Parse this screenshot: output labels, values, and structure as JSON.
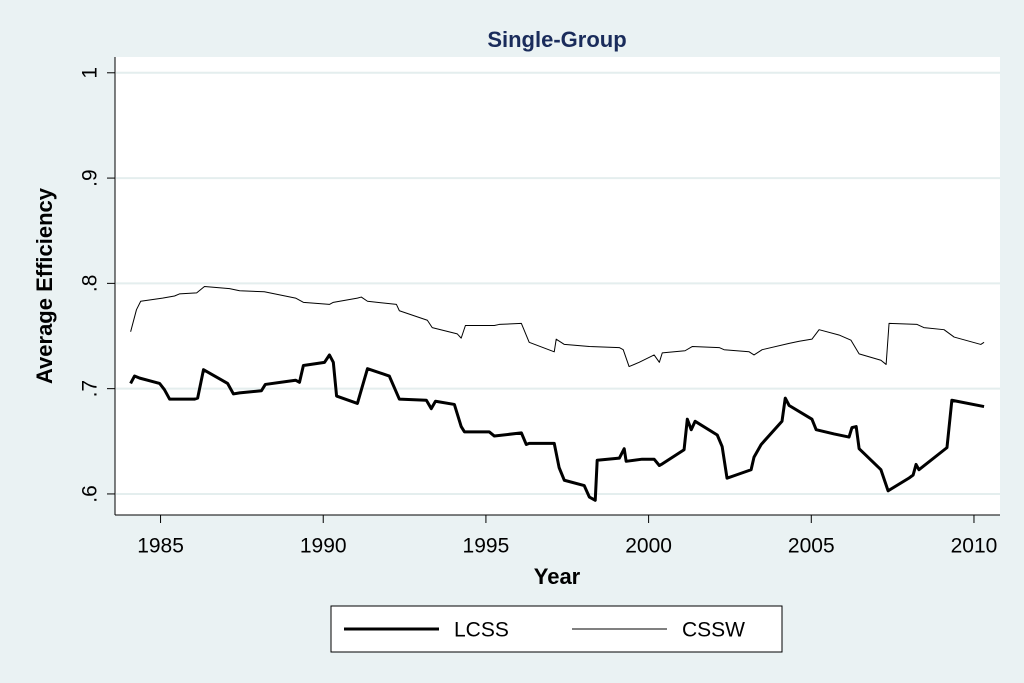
{
  "chart_data": {
    "type": "line",
    "title": "Single-Group",
    "x_label": "Year",
    "y_label": "Average Efficiency",
    "xlim": [
      1983.6,
      2010.8
    ],
    "ylim": [
      0.58,
      1.015
    ],
    "xticks": [
      1985,
      1990,
      1995,
      2000,
      2005,
      2010
    ],
    "yticks": [
      {
        "value": 0.6,
        "label": ".6"
      },
      {
        "value": 0.7,
        "label": ".7"
      },
      {
        "value": 0.8,
        "label": ".8"
      },
      {
        "value": 0.9,
        "label": ".9"
      },
      {
        "value": 1,
        "label": "1"
      }
    ],
    "grid": true,
    "legend": "bottom",
    "series": [
      {
        "name": "LCSS",
        "color": "#000000",
        "line_width": 3,
        "x": [
          1984.08,
          1984.2,
          1984.36,
          1984.97,
          1985.12,
          1985.28,
          1986.04,
          1986.14,
          1986.32,
          1987.06,
          1987.24,
          1987.43,
          1988.1,
          1988.22,
          1989.15,
          1989.27,
          1989.39,
          1990.04,
          1990.19,
          1990.31,
          1990.41,
          1991.05,
          1991.36,
          1992.03,
          1992.34,
          1993.17,
          1993.32,
          1993.45,
          1994.03,
          1994.24,
          1994.34,
          1995.1,
          1995.26,
          1996.09,
          1996.24,
          1996.33,
          1997.1,
          1997.25,
          1997.41,
          1998.02,
          1998.18,
          1998.36,
          1998.42,
          1999.1,
          1999.25,
          1999.31,
          1999.8,
          2000.17,
          2000.33,
          2000.39,
          2001.09,
          2001.19,
          2001.31,
          2001.43,
          2002.11,
          2002.26,
          2002.41,
          2002.69,
          2003.15,
          2003.24,
          2003.46,
          2004.1,
          2004.2,
          2004.32,
          2005.02,
          2005.15,
          2005.7,
          2006.16,
          2006.25,
          2006.38,
          2006.47,
          2007.14,
          2007.36,
          2008.0,
          2008.13,
          2008.22,
          2008.31,
          2009.17,
          2009.32,
          2010.31
        ],
        "values": [
          0.705,
          0.712,
          0.71,
          0.705,
          0.699,
          0.69,
          0.69,
          0.691,
          0.718,
          0.705,
          0.695,
          0.696,
          0.698,
          0.704,
          0.708,
          0.706,
          0.722,
          0.725,
          0.732,
          0.725,
          0.693,
          0.686,
          0.719,
          0.712,
          0.69,
          0.689,
          0.681,
          0.688,
          0.685,
          0.664,
          0.659,
          0.659,
          0.655,
          0.658,
          0.647,
          0.648,
          0.648,
          0.625,
          0.613,
          0.608,
          0.597,
          0.594,
          0.632,
          0.634,
          0.643,
          0.631,
          0.633,
          0.633,
          0.627,
          0.628,
          0.642,
          0.671,
          0.661,
          0.669,
          0.656,
          0.645,
          0.615,
          0.618,
          0.623,
          0.635,
          0.647,
          0.669,
          0.691,
          0.684,
          0.671,
          0.661,
          0.657,
          0.654,
          0.663,
          0.664,
          0.643,
          0.623,
          0.603,
          0.615,
          0.618,
          0.628,
          0.623,
          0.644,
          0.689,
          0.683
        ]
      },
      {
        "name": "CSSW",
        "color": "#000000",
        "line_width": 1,
        "x": [
          1984.08,
          1984.26,
          1984.39,
          1985.06,
          1985.43,
          1985.58,
          1986.11,
          1986.35,
          1987.12,
          1987.43,
          1988.19,
          1989.15,
          1989.39,
          1990.19,
          1990.31,
          1991.05,
          1991.17,
          1991.36,
          1992.25,
          1992.34,
          1993.2,
          1993.35,
          1994.12,
          1994.24,
          1994.37,
          1995.26,
          1995.41,
          1996.09,
          1996.33,
          1997.1,
          1997.16,
          1997.41,
          1998.18,
          1999.1,
          1999.22,
          1999.4,
          1999.71,
          2000.17,
          2000.33,
          2000.42,
          2001.12,
          2001.34,
          2002.17,
          2002.32,
          2003.09,
          2003.24,
          2003.49,
          2004.32,
          2004.63,
          2005.02,
          2005.24,
          2005.85,
          2006.22,
          2006.47,
          2007.14,
          2007.3,
          2007.39,
          2008.25,
          2008.46,
          2009.08,
          2009.39,
          2010.21,
          2010.31
        ],
        "values": [
          0.754,
          0.775,
          0.783,
          0.786,
          0.788,
          0.79,
          0.791,
          0.797,
          0.795,
          0.793,
          0.792,
          0.786,
          0.782,
          0.78,
          0.782,
          0.786,
          0.787,
          0.783,
          0.78,
          0.774,
          0.765,
          0.758,
          0.752,
          0.748,
          0.76,
          0.76,
          0.761,
          0.762,
          0.744,
          0.735,
          0.747,
          0.742,
          0.74,
          0.739,
          0.737,
          0.721,
          0.725,
          0.732,
          0.725,
          0.734,
          0.736,
          0.74,
          0.739,
          0.737,
          0.735,
          0.732,
          0.737,
          0.743,
          0.745,
          0.747,
          0.756,
          0.751,
          0.746,
          0.733,
          0.727,
          0.723,
          0.762,
          0.761,
          0.758,
          0.756,
          0.749,
          0.742,
          0.744
        ]
      }
    ]
  }
}
